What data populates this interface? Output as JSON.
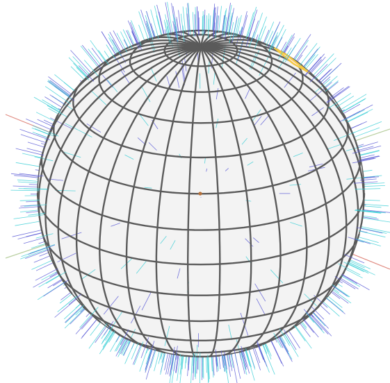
{
  "scene": {
    "latitude_bands": 14,
    "longitude_segments": 32,
    "highlighted_face": {
      "lat_index": 3,
      "lon_index": 10
    },
    "colors": {
      "background": "#ffffff",
      "sphere_fill": "#f3f3f3",
      "grid_line": "#5a5a5a",
      "highlight_fill": "#fde3d3",
      "highlight_stroke": "#f5c842",
      "normal_a": "#5b5bd6",
      "normal_b": "#3ccfd6",
      "axis_x": "#e08a80",
      "axis_y": "#b9cfa0",
      "center_dot": "#b5703a"
    }
  }
}
